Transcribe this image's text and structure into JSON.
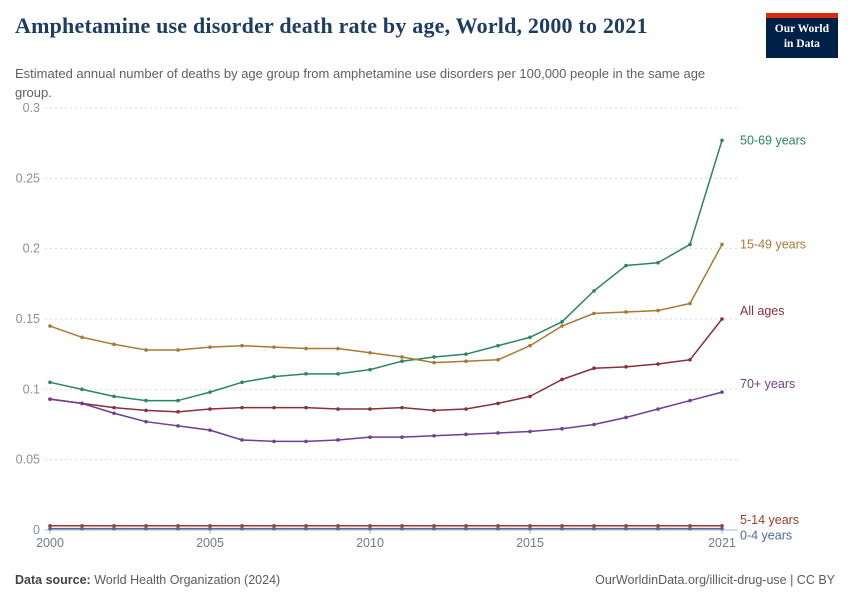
{
  "header": {
    "title": "Amphetamine use disorder death rate by age, World, 2000 to 2021",
    "subtitle": "Estimated annual number of deaths by age group from amphetamine use disorders per 100,000 people in the same age group.",
    "logo": {
      "line1": "Our World",
      "line2": "in Data"
    }
  },
  "footer": {
    "source_label": "Data source:",
    "source_value": "World Health Organization (2024)",
    "credit": "OurWorldinData.org/illicit-drug-use | CC BY"
  },
  "colors": {
    "logo_navy": "#002147",
    "logo_red": "#dc2a0e",
    "title_navy": "#1d3d63",
    "gridline": "#dadada",
    "axis": "#a8b8c8",
    "tick_label": "#6e7b87",
    "y_label": "#8a9099"
  },
  "chart_data": {
    "type": "line",
    "title": "Amphetamine use disorder death rate by age, World, 2000 to 2021",
    "xlabel": "",
    "ylabel": "",
    "x": [
      2000,
      2001,
      2002,
      2003,
      2004,
      2005,
      2006,
      2007,
      2008,
      2009,
      2010,
      2011,
      2012,
      2013,
      2014,
      2015,
      2016,
      2017,
      2018,
      2019,
      2020,
      2021
    ],
    "xticks": [
      2000,
      2005,
      2010,
      2015,
      2021
    ],
    "yticks": [
      0,
      0.05,
      0.1,
      0.15,
      0.2,
      0.25,
      0.3
    ],
    "ylim": [
      0,
      0.3
    ],
    "grid": true,
    "legend_position": "right-end-labels",
    "series": [
      {
        "name": "50-69 years",
        "color": "#2C8465",
        "label_dy": 4,
        "values": [
          0.105,
          0.1,
          0.095,
          0.092,
          0.092,
          0.098,
          0.105,
          0.109,
          0.111,
          0.111,
          0.114,
          0.12,
          0.123,
          0.125,
          0.131,
          0.137,
          0.148,
          0.17,
          0.188,
          0.19,
          0.203,
          0.277
        ]
      },
      {
        "name": "15-49 years",
        "color": "#A87933",
        "label_dy": 4,
        "values": [
          0.145,
          0.137,
          0.132,
          0.128,
          0.128,
          0.13,
          0.131,
          0.13,
          0.129,
          0.129,
          0.126,
          0.123,
          0.119,
          0.12,
          0.121,
          0.131,
          0.145,
          0.154,
          0.155,
          0.156,
          0.161,
          0.203
        ]
      },
      {
        "name": "All ages",
        "color": "#883039",
        "label_dy": -4,
        "values": [
          0.093,
          0.09,
          0.087,
          0.085,
          0.084,
          0.086,
          0.087,
          0.087,
          0.087,
          0.086,
          0.086,
          0.087,
          0.085,
          0.086,
          0.09,
          0.095,
          0.107,
          0.115,
          0.116,
          0.118,
          0.121,
          0.15
        ]
      },
      {
        "name": "70+ years",
        "color": "#6D3E91",
        "label_dy": -4,
        "values": [
          0.093,
          0.09,
          0.083,
          0.077,
          0.074,
          0.071,
          0.064,
          0.063,
          0.063,
          0.064,
          0.066,
          0.066,
          0.067,
          0.068,
          0.069,
          0.07,
          0.072,
          0.075,
          0.08,
          0.086,
          0.092,
          0.098
        ]
      },
      {
        "name": "5-14 years",
        "color": "#9E3A26",
        "label_dy": -2,
        "values": [
          0.003,
          0.003,
          0.003,
          0.003,
          0.003,
          0.003,
          0.003,
          0.003,
          0.003,
          0.003,
          0.003,
          0.003,
          0.003,
          0.003,
          0.003,
          0.003,
          0.003,
          0.003,
          0.003,
          0.003,
          0.003,
          0.003
        ]
      },
      {
        "name": "0-4 years",
        "color": "#4C6A9C",
        "label_dy": 11,
        "values": [
          0.001,
          0.001,
          0.001,
          0.001,
          0.001,
          0.001,
          0.001,
          0.001,
          0.001,
          0.001,
          0.001,
          0.001,
          0.001,
          0.001,
          0.001,
          0.001,
          0.001,
          0.001,
          0.001,
          0.001,
          0.001,
          0.001
        ]
      }
    ]
  }
}
